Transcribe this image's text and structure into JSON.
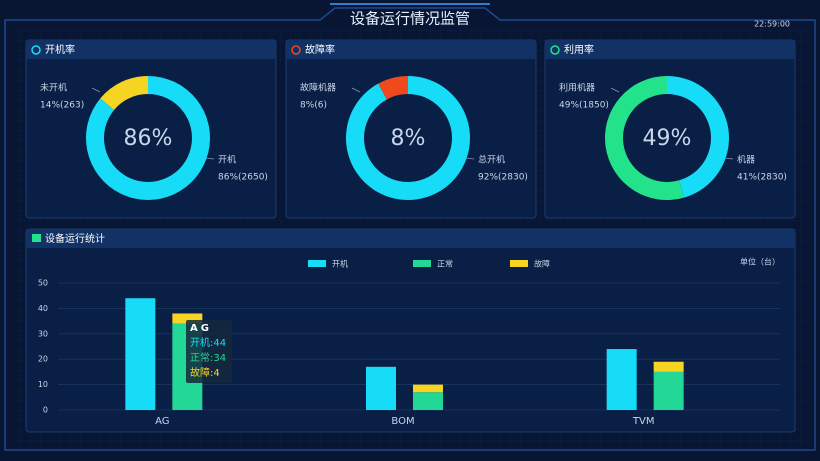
{
  "header": {
    "title": "设备运行情况监管",
    "time": "22:59:00"
  },
  "chart_data": [
    {
      "type": "donut",
      "title": "开机率",
      "center_text": "86%",
      "categories": [
        "未开机",
        "开机"
      ],
      "values": [
        14,
        86
      ],
      "value_labels": [
        "14%(263)",
        "86%(2650)"
      ],
      "colors": [
        "#f5d422",
        "#17dcf7"
      ],
      "icon_color": "#17dcf7"
    },
    {
      "type": "donut",
      "title": "故障率",
      "center_text": "8%",
      "categories": [
        "故障机器",
        "总开机"
      ],
      "values": [
        8,
        92
      ],
      "value_labels": [
        "8%(6)",
        "92%(2830)"
      ],
      "colors": [
        "#f04a1c",
        "#17dcf7"
      ],
      "icon_color": "#f04a1c"
    },
    {
      "type": "donut",
      "title": "利用率",
      "center_text": "49%",
      "categories": [
        "利用机器",
        "机器"
      ],
      "values": [
        49,
        41
      ],
      "value_labels": [
        "49%(1850)",
        "41%(2830)"
      ],
      "colors": [
        "#23e38a",
        "#17dcf7"
      ],
      "icon_color": "#23e38a"
    },
    {
      "type": "bar",
      "title": "设备运行统计",
      "unit": "单位（台）",
      "categories": [
        "AG",
        "BOM",
        "TVM"
      ],
      "series": [
        {
          "name": "开机",
          "color": "#17dcf7",
          "values": [
            44,
            17,
            24
          ]
        },
        {
          "name": "正常",
          "color": "#23d796",
          "values": [
            34,
            7,
            15
          ]
        },
        {
          "name": "故障",
          "color": "#f5d422",
          "values": [
            4,
            3,
            4
          ]
        }
      ],
      "ylim": [
        0,
        50
      ],
      "yticks": [
        0,
        10,
        20,
        30,
        40,
        50
      ],
      "grid": true
    }
  ]
}
